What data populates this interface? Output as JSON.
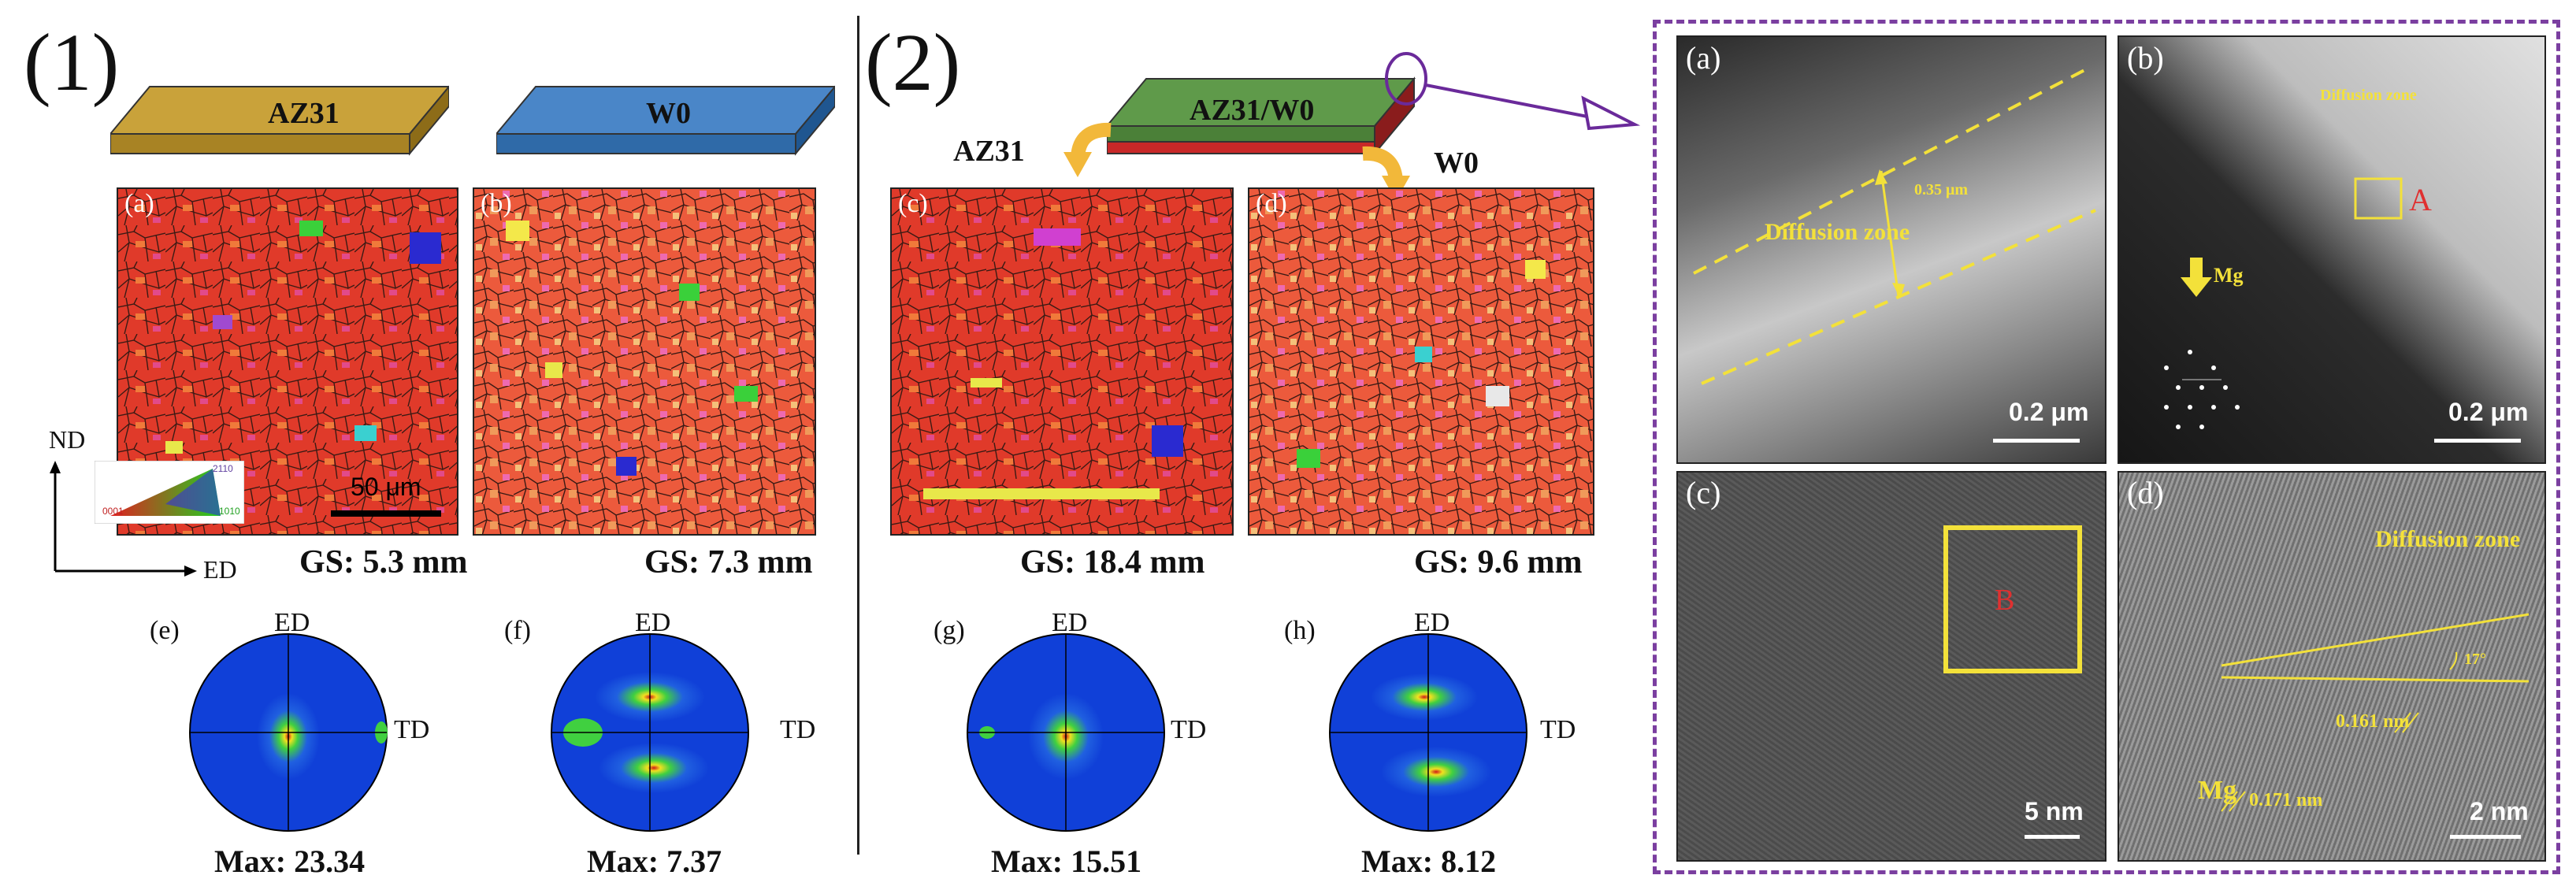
{
  "section1": {
    "label": "(1)",
    "slab_left": "AZ31",
    "slab_right": "W0"
  },
  "section2": {
    "label": "(2)",
    "slab_center": "AZ31/W0",
    "arrow_left": "AZ31",
    "arrow_right": "W0"
  },
  "maps": [
    {
      "label": "(a)",
      "gs": "GS: 5.3 mm",
      "scale": "50 μm"
    },
    {
      "label": "(b)",
      "gs": "GS: 7.3 mm"
    },
    {
      "label": "(c)",
      "gs": "GS: 18.4 mm"
    },
    {
      "label": "(d)",
      "gs": "GS: 9.6 mm"
    }
  ],
  "axes": {
    "nd": "ND",
    "ed": "ED",
    "legend": {
      "v1": "2110",
      "v2": "0001",
      "v3": "1010"
    }
  },
  "pole_figures": [
    {
      "label": "(e)",
      "max": "Max: 23.34",
      "top": "ED",
      "side": "TD"
    },
    {
      "label": "(f)",
      "max": "Max: 7.37",
      "top": "ED",
      "side": "TD"
    },
    {
      "label": "(g)",
      "max": "Max: 15.51",
      "top": "ED",
      "side": "TD"
    },
    {
      "label": "(h)",
      "max": "Max: 8.12",
      "top": "ED",
      "side": "TD"
    }
  ],
  "tem": {
    "a": {
      "label": "(a)",
      "zone": "Diffusion zone",
      "width": "0.35 μm",
      "scale": "0.2 μm"
    },
    "b": {
      "label": "(b)",
      "zone": "Diffusion zone",
      "marker": "A",
      "mg": "Mg",
      "scale": "0.2 μm"
    },
    "c": {
      "label": "(c)",
      "marker": "B",
      "scale": "5 nm"
    },
    "d": {
      "label": "(d)",
      "zone": "Diffusion zone",
      "angle": "17°",
      "d1": "0.161 nm",
      "mg": "Mg",
      "d2": "0.171 nm",
      "scale": "2 nm"
    }
  },
  "colors": {
    "frame": "#7b3fa0",
    "slab_az31": "#c9a23a",
    "slab_w0": "#4a86c8",
    "slab_bond": "#5f9a4a",
    "arrow": "#f2b83a",
    "annot": "#f3e13a"
  }
}
